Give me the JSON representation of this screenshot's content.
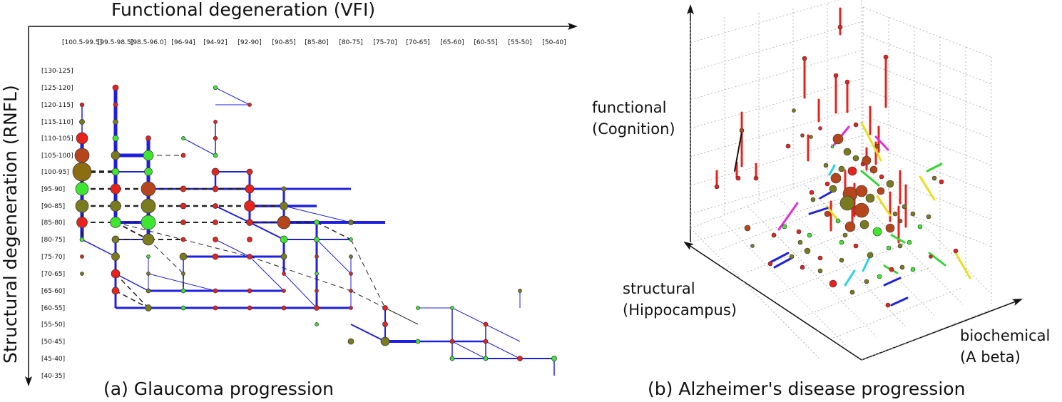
{
  "panel_a": {
    "x_axis_title": "Functional degeneration (VFI)",
    "y_axis_title": "Structural degeneration (RNFL)",
    "caption": "(a) Glaucoma progression",
    "x_ticks": [
      "[100.5-99.5]",
      "[99.5-98.5]",
      "[98.5-96.0]",
      "[96-94]",
      "[94-92]",
      "[92-90]",
      "[90-85]",
      "[85-80]",
      "[80-75]",
      "[75-70]",
      "[70-65]",
      "[65-60]",
      "[60-55]",
      "[55-50]",
      "[50-40]"
    ],
    "y_ticks": [
      "[130-125]",
      "[125-120]",
      "[120-115]",
      "[115-110]",
      "[110-105]",
      "[105-100]",
      "[100-95]",
      "[95-90]",
      "[90-85]",
      "[85-80]",
      "[80-75]",
      "[75-70]",
      "[70-65]",
      "[65-60]",
      "[60-55]",
      "[55-50]",
      "[50-45]",
      "[45-40]",
      "[40-35]"
    ]
  },
  "panel_b": {
    "label_functional": "functional",
    "label_functional_sub": "(Cognition)",
    "label_structural": "structural",
    "label_structural_sub": "(Hippocampus)",
    "label_biochemical": "biochemical",
    "label_biochemical_sub": "(A beta)",
    "caption": "(b) Alzheimer's disease progression"
  },
  "colors": {
    "edge_blue": "#1f1fe0",
    "edge_dash": "#222222",
    "node_red": "#e8221c",
    "node_green": "#3ee62f",
    "node_olive": "#7a7a1e",
    "node_brown": "#b5451b",
    "node_darkolive": "#8b6d12",
    "seg_red": "#e8221c",
    "seg_magenta": "#e82bd8",
    "seg_yellow": "#e8e01c",
    "seg_cyan": "#28d4e0",
    "seg_green": "#33d633",
    "seg_blue": "#2222dd",
    "seg_black": "#111111"
  }
}
